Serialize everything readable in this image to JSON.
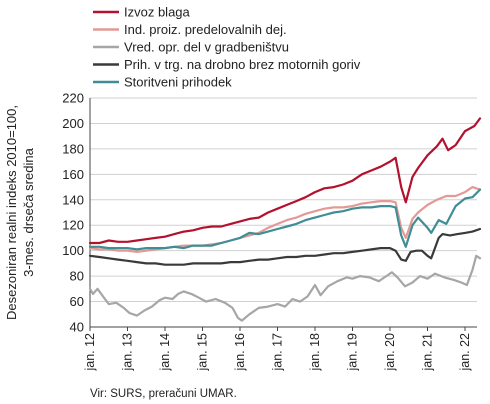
{
  "chart_data": {
    "type": "line",
    "ylabel": "Desezoniran realni indeks 2010=100,\n3-mes. drseča sredina",
    "ylim": [
      40,
      220
    ],
    "yticks": [
      40,
      60,
      80,
      100,
      120,
      140,
      160,
      180,
      200,
      220
    ],
    "xlim": [
      2012.0,
      2022.5
    ],
    "xticks": [
      {
        "label": "jan. 12",
        "x": 2012.0
      },
      {
        "label": "jan. 13",
        "x": 2013.0
      },
      {
        "label": "jan. 14",
        "x": 2014.0
      },
      {
        "label": "jan. 15",
        "x": 2015.0
      },
      {
        "label": "jan. 16",
        "x": 2016.0
      },
      {
        "label": "jan. 17",
        "x": 2017.0
      },
      {
        "label": "jan. 18",
        "x": 2018.0
      },
      {
        "label": "jan. 19",
        "x": 2019.0
      },
      {
        "label": "jan. 20",
        "x": 2020.0
      },
      {
        "label": "jan. 21",
        "x": 2021.0
      },
      {
        "label": "jan. 22",
        "x": 2022.0
      }
    ],
    "grid": "horizontal",
    "legend_position": "top",
    "source": "Vir: SURS, preračuni UMAR.",
    "series": [
      {
        "name": "Izvoz blaga",
        "color": "#b3112e",
        "points": [
          [
            2012.0,
            106
          ],
          [
            2012.25,
            106
          ],
          [
            2012.5,
            108
          ],
          [
            2012.75,
            107
          ],
          [
            2013.0,
            107
          ],
          [
            2013.25,
            108
          ],
          [
            2013.5,
            109
          ],
          [
            2013.75,
            110
          ],
          [
            2014.0,
            111
          ],
          [
            2014.25,
            113
          ],
          [
            2014.5,
            115
          ],
          [
            2014.75,
            116
          ],
          [
            2015.0,
            118
          ],
          [
            2015.25,
            119
          ],
          [
            2015.5,
            119
          ],
          [
            2015.75,
            121
          ],
          [
            2016.0,
            123
          ],
          [
            2016.25,
            125
          ],
          [
            2016.5,
            126
          ],
          [
            2016.75,
            130
          ],
          [
            2017.0,
            133
          ],
          [
            2017.25,
            136
          ],
          [
            2017.5,
            139
          ],
          [
            2017.75,
            142
          ],
          [
            2018.0,
            146
          ],
          [
            2018.25,
            149
          ],
          [
            2018.5,
            150
          ],
          [
            2018.75,
            152
          ],
          [
            2019.0,
            155
          ],
          [
            2019.25,
            160
          ],
          [
            2019.5,
            163
          ],
          [
            2019.75,
            166
          ],
          [
            2020.0,
            170
          ],
          [
            2020.15,
            173
          ],
          [
            2020.3,
            150
          ],
          [
            2020.42,
            138
          ],
          [
            2020.6,
            158
          ],
          [
            2020.75,
            165
          ],
          [
            2021.0,
            175
          ],
          [
            2021.25,
            182
          ],
          [
            2021.4,
            188
          ],
          [
            2021.55,
            179
          ],
          [
            2021.75,
            183
          ],
          [
            2022.0,
            194
          ],
          [
            2022.25,
            198
          ],
          [
            2022.4,
            204
          ]
        ]
      },
      {
        "name": "Ind. proiz. predelovalnih dej.",
        "color": "#e39a96",
        "points": [
          [
            2012.0,
            102
          ],
          [
            2012.25,
            101
          ],
          [
            2012.5,
            101
          ],
          [
            2012.75,
            100
          ],
          [
            2013.0,
            100
          ],
          [
            2013.25,
            99
          ],
          [
            2013.5,
            100
          ],
          [
            2013.75,
            101
          ],
          [
            2014.0,
            102
          ],
          [
            2014.25,
            103
          ],
          [
            2014.5,
            104
          ],
          [
            2014.75,
            104
          ],
          [
            2015.0,
            104
          ],
          [
            2015.25,
            105
          ],
          [
            2015.5,
            106
          ],
          [
            2015.75,
            108
          ],
          [
            2016.0,
            110
          ],
          [
            2016.25,
            112
          ],
          [
            2016.5,
            114
          ],
          [
            2016.75,
            118
          ],
          [
            2017.0,
            121
          ],
          [
            2017.25,
            124
          ],
          [
            2017.5,
            126
          ],
          [
            2017.75,
            129
          ],
          [
            2018.0,
            131
          ],
          [
            2018.25,
            133
          ],
          [
            2018.5,
            134
          ],
          [
            2018.75,
            134
          ],
          [
            2019.0,
            135
          ],
          [
            2019.25,
            137
          ],
          [
            2019.5,
            138
          ],
          [
            2019.75,
            139
          ],
          [
            2020.0,
            139
          ],
          [
            2020.15,
            138
          ],
          [
            2020.3,
            118
          ],
          [
            2020.42,
            110
          ],
          [
            2020.6,
            125
          ],
          [
            2020.75,
            130
          ],
          [
            2021.0,
            136
          ],
          [
            2021.25,
            140
          ],
          [
            2021.5,
            143
          ],
          [
            2021.75,
            143
          ],
          [
            2022.0,
            146
          ],
          [
            2022.2,
            150
          ],
          [
            2022.4,
            148
          ]
        ]
      },
      {
        "name": "Vred. opr. del v gradbeništvu",
        "color": "#a6a6a6",
        "points": [
          [
            2012.0,
            70
          ],
          [
            2012.08,
            66
          ],
          [
            2012.2,
            70
          ],
          [
            2012.35,
            64
          ],
          [
            2012.5,
            58
          ],
          [
            2012.7,
            59
          ],
          [
            2012.9,
            55
          ],
          [
            2013.05,
            51
          ],
          [
            2013.25,
            49
          ],
          [
            2013.45,
            53
          ],
          [
            2013.65,
            56
          ],
          [
            2013.85,
            61
          ],
          [
            2014.0,
            63
          ],
          [
            2014.2,
            62
          ],
          [
            2014.35,
            66
          ],
          [
            2014.5,
            68
          ],
          [
            2014.7,
            66
          ],
          [
            2014.9,
            63
          ],
          [
            2015.1,
            60
          ],
          [
            2015.35,
            62
          ],
          [
            2015.6,
            59
          ],
          [
            2015.8,
            55
          ],
          [
            2015.95,
            47
          ],
          [
            2016.05,
            45
          ],
          [
            2016.25,
            50
          ],
          [
            2016.5,
            55
          ],
          [
            2016.75,
            56
          ],
          [
            2017.0,
            58
          ],
          [
            2017.2,
            56
          ],
          [
            2017.4,
            62
          ],
          [
            2017.6,
            60
          ],
          [
            2017.8,
            64
          ],
          [
            2018.0,
            73
          ],
          [
            2018.15,
            65
          ],
          [
            2018.35,
            72
          ],
          [
            2018.6,
            76
          ],
          [
            2018.85,
            79
          ],
          [
            2019.0,
            78
          ],
          [
            2019.2,
            80
          ],
          [
            2019.45,
            79
          ],
          [
            2019.7,
            76
          ],
          [
            2019.9,
            80
          ],
          [
            2020.05,
            83
          ],
          [
            2020.2,
            79
          ],
          [
            2020.4,
            72
          ],
          [
            2020.6,
            75
          ],
          [
            2020.8,
            80
          ],
          [
            2021.0,
            78
          ],
          [
            2021.2,
            82
          ],
          [
            2021.45,
            79
          ],
          [
            2021.7,
            77
          ],
          [
            2021.9,
            75
          ],
          [
            2022.05,
            73
          ],
          [
            2022.2,
            85
          ],
          [
            2022.3,
            96
          ],
          [
            2022.4,
            94
          ]
        ]
      },
      {
        "name": "Prih. v trg. na drobno brez motornih goriv",
        "color": "#3a3a3a",
        "points": [
          [
            2012.0,
            96
          ],
          [
            2012.25,
            95
          ],
          [
            2012.5,
            94
          ],
          [
            2012.75,
            93
          ],
          [
            2013.0,
            92
          ],
          [
            2013.25,
            91
          ],
          [
            2013.5,
            90
          ],
          [
            2013.75,
            90
          ],
          [
            2014.0,
            89
          ],
          [
            2014.25,
            89
          ],
          [
            2014.5,
            89
          ],
          [
            2014.75,
            90
          ],
          [
            2015.0,
            90
          ],
          [
            2015.25,
            90
          ],
          [
            2015.5,
            90
          ],
          [
            2015.75,
            91
          ],
          [
            2016.0,
            91
          ],
          [
            2016.25,
            92
          ],
          [
            2016.5,
            93
          ],
          [
            2016.75,
            93
          ],
          [
            2017.0,
            94
          ],
          [
            2017.25,
            95
          ],
          [
            2017.5,
            95
          ],
          [
            2017.75,
            96
          ],
          [
            2018.0,
            96
          ],
          [
            2018.25,
            97
          ],
          [
            2018.5,
            98
          ],
          [
            2018.75,
            98
          ],
          [
            2019.0,
            99
          ],
          [
            2019.25,
            100
          ],
          [
            2019.5,
            101
          ],
          [
            2019.75,
            102
          ],
          [
            2020.0,
            102
          ],
          [
            2020.15,
            100
          ],
          [
            2020.3,
            93
          ],
          [
            2020.42,
            92
          ],
          [
            2020.55,
            99
          ],
          [
            2020.7,
            100
          ],
          [
            2020.85,
            100
          ],
          [
            2021.0,
            96
          ],
          [
            2021.1,
            94
          ],
          [
            2021.3,
            110
          ],
          [
            2021.4,
            113
          ],
          [
            2021.6,
            112
          ],
          [
            2021.8,
            113
          ],
          [
            2022.0,
            114
          ],
          [
            2022.2,
            115
          ],
          [
            2022.4,
            117
          ]
        ]
      },
      {
        "name": "Storitveni prihodek",
        "color": "#3f8e95",
        "points": [
          [
            2012.0,
            103
          ],
          [
            2012.25,
            103
          ],
          [
            2012.5,
            102
          ],
          [
            2012.75,
            102
          ],
          [
            2013.0,
            102
          ],
          [
            2013.25,
            101
          ],
          [
            2013.5,
            102
          ],
          [
            2013.75,
            102
          ],
          [
            2014.0,
            102
          ],
          [
            2014.25,
            103
          ],
          [
            2014.5,
            102
          ],
          [
            2014.75,
            104
          ],
          [
            2015.0,
            104
          ],
          [
            2015.25,
            104
          ],
          [
            2015.5,
            106
          ],
          [
            2015.75,
            108
          ],
          [
            2016.0,
            110
          ],
          [
            2016.25,
            114
          ],
          [
            2016.5,
            113
          ],
          [
            2016.75,
            115
          ],
          [
            2017.0,
            117
          ],
          [
            2017.25,
            119
          ],
          [
            2017.5,
            121
          ],
          [
            2017.75,
            124
          ],
          [
            2018.0,
            126
          ],
          [
            2018.25,
            128
          ],
          [
            2018.5,
            130
          ],
          [
            2018.75,
            131
          ],
          [
            2019.0,
            133
          ],
          [
            2019.25,
            134
          ],
          [
            2019.5,
            134
          ],
          [
            2019.75,
            135
          ],
          [
            2020.0,
            135
          ],
          [
            2020.15,
            134
          ],
          [
            2020.3,
            112
          ],
          [
            2020.42,
            103
          ],
          [
            2020.6,
            120
          ],
          [
            2020.75,
            126
          ],
          [
            2021.0,
            118
          ],
          [
            2021.1,
            114
          ],
          [
            2021.3,
            124
          ],
          [
            2021.5,
            121
          ],
          [
            2021.75,
            135
          ],
          [
            2022.0,
            141
          ],
          [
            2022.2,
            142
          ],
          [
            2022.4,
            148
          ]
        ]
      }
    ]
  }
}
